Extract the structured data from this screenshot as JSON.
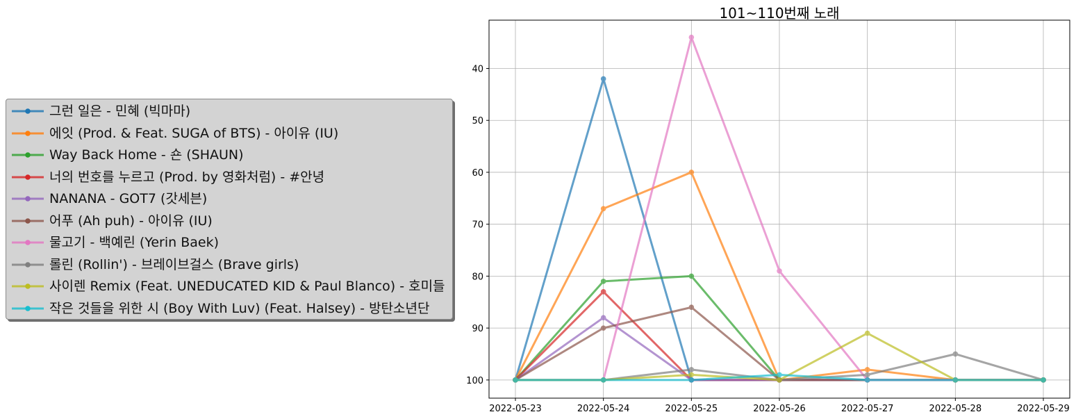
{
  "chart_data": {
    "type": "line",
    "title": "101~110번째 노래",
    "xlabel": "",
    "ylabel": "",
    "x": [
      "2022-05-23",
      "2022-05-24",
      "2022-05-25",
      "2022-05-26",
      "2022-05-27",
      "2022-05-28",
      "2022-05-29"
    ],
    "y_ticks": [
      40,
      50,
      60,
      70,
      80,
      90,
      100
    ],
    "y_tick_labels": [
      "40",
      "50",
      "60",
      "70",
      "80",
      "90",
      "100"
    ],
    "ylim": [
      103.5,
      30.7
    ],
    "y_inverted": true,
    "grid": true,
    "legend_position": "left",
    "series": [
      {
        "name": "그런 일은 - 민혜 (빅마마)",
        "color": "#1f77b4",
        "values": [
          100,
          42,
          100,
          100,
          100,
          100,
          100
        ]
      },
      {
        "name": "에잇 (Prod. & Feat. SUGA of BTS) - 아이유 (IU)",
        "color": "#ff7f0e",
        "values": [
          100,
          67,
          60,
          100,
          98,
          100,
          100
        ]
      },
      {
        "name": "Way Back Home - 숀 (SHAUN)",
        "color": "#2ca02c",
        "values": [
          100,
          81,
          80,
          100,
          100,
          100,
          100
        ]
      },
      {
        "name": "너의 번호를 누르고 (Prod. by 영화처럼) - #안녕",
        "color": "#d62728",
        "values": [
          100,
          83,
          100,
          100,
          100,
          100,
          100
        ]
      },
      {
        "name": "NANANA - GOT7 (갓세븐)",
        "color": "#9467bd",
        "values": [
          100,
          88,
          100,
          100,
          100,
          100,
          100
        ]
      },
      {
        "name": "어푸 (Ah puh) - 아이유 (IU)",
        "color": "#8c564b",
        "values": [
          100,
          90,
          86,
          100,
          100,
          100,
          100
        ]
      },
      {
        "name": "물고기 - 백예린 (Yerin Baek)",
        "color": "#e377c2",
        "values": [
          100,
          100,
          34,
          79,
          100,
          100,
          100
        ]
      },
      {
        "name": "롤린 (Rollin') - 브레이브걸스 (Brave girls)",
        "color": "#7f7f7f",
        "values": [
          100,
          100,
          98,
          100,
          99,
          95,
          100
        ]
      },
      {
        "name": "사이렌 Remix (Feat. UNEDUCATED KID & Paul Blanco) - 호미들",
        "color": "#bcbd22",
        "values": [
          100,
          100,
          99,
          100,
          91,
          100,
          100
        ]
      },
      {
        "name": "작은 것들을 위한 시 (Boy With Luv) (Feat. Halsey) - 방탄소년단",
        "color": "#17becf",
        "values": [
          100,
          100,
          100,
          99,
          100,
          100,
          100
        ]
      }
    ]
  }
}
